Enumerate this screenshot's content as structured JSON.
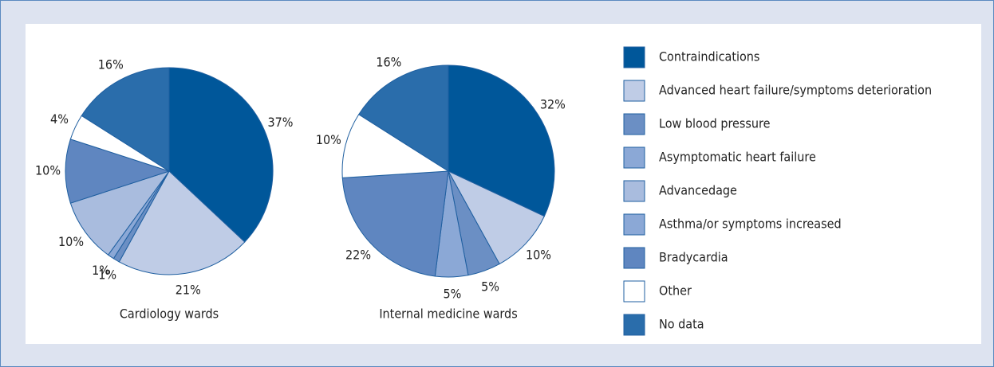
{
  "chart_data": [
    {
      "type": "pie",
      "title": "Cardiology wards",
      "categories": [
        "Contraindications",
        "Advanced heart failure/symptoms deterioration",
        "Low blood pressure",
        "Asymptomatic heart failure",
        "Advancedage",
        "Asthma/or symptoms increased",
        "Bradycardia",
        "Other",
        "No data"
      ],
      "colors": [
        "#00579a",
        "#bfcce6",
        "#6b8fc4",
        "#8ba8d6",
        "#a9bcde",
        "#8ba8d6",
        "#5f86c0",
        "#ffffff",
        "#2a6dab"
      ],
      "values": [
        37,
        21,
        1,
        1,
        10,
        null,
        10,
        4,
        16
      ],
      "value_labels": [
        "37%",
        "21%",
        "1%",
        "1%",
        "10%",
        null,
        "10%",
        "4%",
        "16%"
      ]
    },
    {
      "type": "pie",
      "title": "Internal medicine wards",
      "categories": [
        "Contraindications",
        "Advanced heart failure/symptoms deterioration",
        "Low blood pressure",
        "Asymptomatic heart failure",
        "Advancedage",
        "Asthma/or symptoms increased",
        "Bradycardia",
        "Other",
        "No data"
      ],
      "colors": [
        "#00579a",
        "#bfcce6",
        "#6b8fc4",
        "#8ba8d6",
        "#a9bcde",
        "#8ba8d6",
        "#5f86c0",
        "#ffffff",
        "#2a6dab"
      ],
      "values": [
        32,
        10,
        5,
        5,
        null,
        null,
        22,
        10,
        16
      ],
      "value_labels": [
        "32%",
        "10%",
        "5%",
        "5%",
        null,
        null,
        "22%",
        "10%",
        "16%"
      ],
      "legend": "right"
    }
  ]
}
